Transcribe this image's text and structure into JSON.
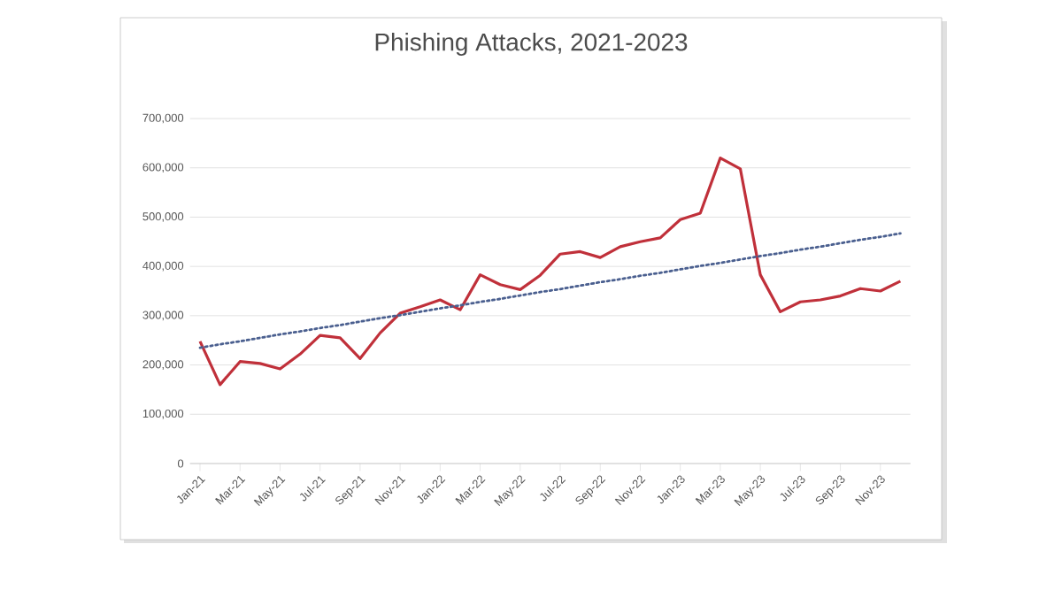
{
  "chart_data": {
    "type": "line",
    "title": "Phishing Attacks, 2021-2023",
    "categories": [
      "Jan-21",
      null,
      "Mar-21",
      null,
      "May-21",
      null,
      "Jul-21",
      null,
      "Sep-21",
      null,
      "Nov-21",
      null,
      "Jan-22",
      null,
      "Mar-22",
      null,
      "May-22",
      null,
      "Jul-22",
      null,
      "Sep-22",
      null,
      "Nov-22",
      null,
      "Jan-23",
      null,
      "Mar-23",
      null,
      "May-23",
      null,
      "Jul-23",
      null,
      "Sep-23",
      null,
      "Nov-23",
      null
    ],
    "series": [
      {
        "color": "#c0303a",
        "line_style": "solid",
        "values": [
          248000,
          160000,
          207000,
          203000,
          192000,
          222000,
          260000,
          255000,
          213000,
          265000,
          305000,
          318000,
          332000,
          312000,
          383000,
          363000,
          353000,
          382000,
          425000,
          430000,
          418000,
          440000,
          450000,
          458000,
          495000,
          508000,
          620000,
          598000,
          383000,
          308000,
          328000,
          332000,
          340000,
          355000,
          350000,
          370000
        ]
      },
      {
        "color": "#4a5f8f",
        "line_style": "dotted",
        "values": [
          235000,
          242000,
          248000,
          255000,
          262000,
          268000,
          275000,
          281000,
          288000,
          295000,
          301000,
          308000,
          315000,
          321000,
          328000,
          334000,
          341000,
          348000,
          354000,
          361000,
          368000,
          374000,
          381000,
          387000,
          394000,
          401000,
          407000,
          414000,
          421000,
          427000,
          434000,
          440000,
          447000,
          454000,
          460000,
          467000
        ]
      }
    ],
    "ylim": [
      0,
      700000
    ],
    "yticks": [
      0,
      {
        "value": 100000,
        "label": "100,000"
      },
      {
        "value": 200000,
        "label": "200,000"
      },
      {
        "value": 300000,
        "label": "300,000"
      },
      {
        "value": 400000,
        "label": "400,000"
      },
      {
        "value": 500000,
        "label": "500,000"
      },
      {
        "value": 600000,
        "label": "600,000"
      },
      {
        "value": 700000,
        "label": "700,000"
      }
    ],
    "grid": "y",
    "marker": "none"
  }
}
